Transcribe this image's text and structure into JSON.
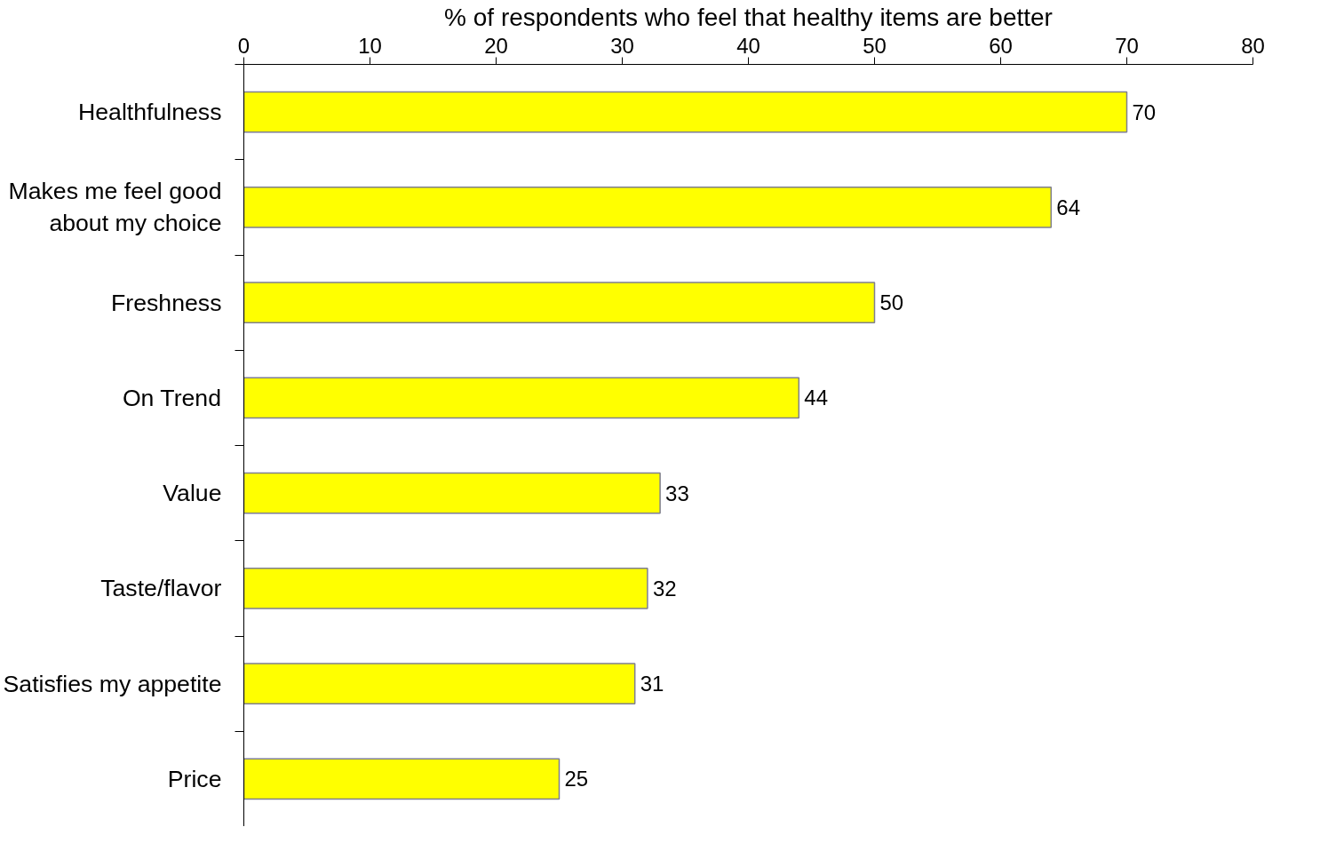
{
  "chart_data": {
    "type": "bar",
    "orientation": "horizontal",
    "xlabel": "% of respondents who feel that healthy items are better",
    "categories": [
      "Healthfulness",
      "Makes me feel good\nabout my choice",
      "Freshness",
      "On Trend",
      "Value",
      "Taste/flavor",
      "Satisfies my appetite",
      "Price"
    ],
    "values": [
      70,
      64,
      50,
      44,
      33,
      32,
      31,
      25
    ],
    "color": "#ffff00",
    "xlim": [
      0,
      80
    ],
    "xticks": [
      0,
      10,
      20,
      30,
      40,
      50,
      60,
      70,
      80
    ],
    "data_labels": true,
    "grid": false
  }
}
